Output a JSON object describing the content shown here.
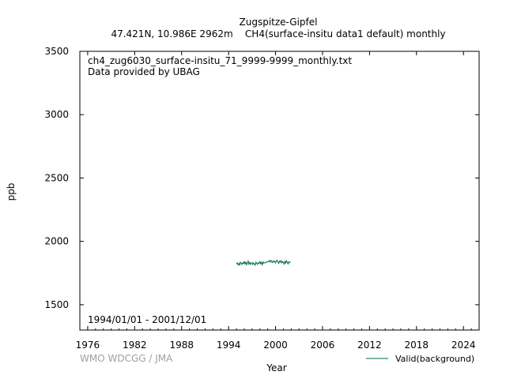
{
  "chart_data": {
    "type": "line",
    "title": "Zugspitze-Gipfel",
    "subtitle": "47.421N, 10.986E 2962m    CH4(surface-insitu data1 default) monthly",
    "file_label": "ch4_zug6030_surface-insitu_71_9999-9999_monthly.txt",
    "provider_label": "Data provided by UBAG",
    "period_label": "1994/01/01 - 2001/12/01",
    "xlabel": "Year",
    "ylabel": "ppb",
    "credit": "WMO WDCGG / JMA",
    "xlim": [
      1975,
      2026
    ],
    "ylim": [
      1300,
      3500
    ],
    "xticks": [
      1976,
      1982,
      1988,
      1994,
      2000,
      2006,
      2012,
      2018,
      2024
    ],
    "yticks": [
      1500,
      2000,
      2500,
      3000,
      3500
    ],
    "grid": false,
    "legend_position": "bottom-right",
    "series": [
      {
        "name": "Valid(background)",
        "color": "#006a3c",
        "x": [
          1995.0,
          1995.1,
          1995.2,
          1995.3,
          1995.4,
          1995.5,
          1995.6,
          1995.7,
          1995.8,
          1995.9,
          1996.0,
          1996.1,
          1996.2,
          1996.3,
          1996.4,
          1996.5,
          1996.6,
          1996.7,
          1996.8,
          1996.9,
          1997.0,
          1997.1,
          1997.2,
          1997.3,
          1997.4,
          1997.5,
          1997.6,
          1997.7,
          1997.8,
          1997.9,
          1998.0,
          1998.1,
          1998.2,
          1998.3,
          1998.4,
          1998.5,
          1999.1,
          1999.2,
          1999.3,
          1999.4,
          1999.5,
          1999.6,
          1999.7,
          1999.8,
          1999.9,
          2000.0,
          2000.1,
          2000.2,
          2000.3,
          2000.4,
          2000.5,
          2000.6,
          2000.7,
          2000.8,
          2000.9,
          2001.0,
          2001.1,
          2001.2,
          2001.3,
          2001.4,
          2001.5,
          2001.6,
          2001.7,
          2001.8,
          2001.9
        ],
        "y": [
          1822,
          1830,
          1815,
          1826,
          1812,
          1835,
          1828,
          1818,
          1832,
          1825,
          1840,
          1822,
          1836,
          1815,
          1830,
          1845,
          1820,
          1834,
          1818,
          1828,
          1833,
          1816,
          1830,
          1822,
          1812,
          1836,
          1825,
          1818,
          1832,
          1826,
          1840,
          1822,
          1835,
          1815,
          1838,
          1828,
          1842,
          1848,
          1836,
          1850,
          1840,
          1833,
          1846,
          1838,
          1842,
          1830,
          1845,
          1852,
          1838,
          1826,
          1844,
          1836,
          1848,
          1830,
          1841,
          1834,
          1820,
          1842,
          1828,
          1846,
          1835,
          1822,
          1840,
          1832,
          1838
        ]
      }
    ]
  }
}
